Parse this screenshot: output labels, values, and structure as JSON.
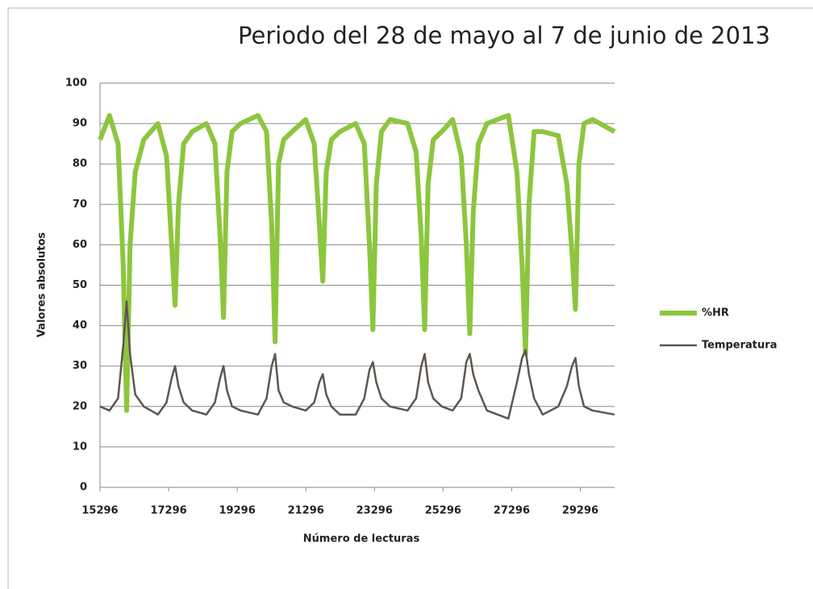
{
  "chart_data": {
    "type": "line",
    "title": "Periodo del 28 de mayo al 7 de junio de 2013",
    "xlabel": "Número de lecturas",
    "ylabel": "Valores absolutos",
    "x": [
      15296,
      15572,
      15822,
      15972,
      16072,
      16172,
      16322,
      16572,
      16984,
      17234,
      17384,
      17484,
      17584,
      17734,
      17984,
      18396,
      18646,
      18796,
      18896,
      18996,
      19146,
      19396,
      19900,
      20150,
      20300,
      20400,
      20500,
      20650,
      20900,
      21290,
      21540,
      21690,
      21790,
      21890,
      22040,
      22290,
      22750,
      23000,
      23150,
      23250,
      23350,
      23500,
      23750,
      24260,
      24510,
      24660,
      24760,
      24860,
      25010,
      25260,
      25575,
      25825,
      25975,
      26075,
      26175,
      26325,
      26575,
      27200,
      27450,
      27600,
      27700,
      27800,
      27950,
      28200,
      28655,
      28905,
      29055,
      29155,
      29255,
      29405,
      29655,
      30296
    ],
    "series": [
      {
        "name": "%HR",
        "color": "#8cc63e",
        "values": [
          86,
          92,
          85,
          55,
          19,
          60,
          78,
          86,
          90,
          82,
          60,
          45,
          70,
          85,
          88,
          90,
          85,
          62,
          42,
          78,
          88,
          90,
          92,
          88,
          65,
          36,
          80,
          86,
          88,
          91,
          85,
          65,
          51,
          78,
          86,
          88,
          90,
          85,
          60,
          39,
          75,
          88,
          91,
          90,
          83,
          62,
          39,
          75,
          86,
          88,
          91,
          82,
          60,
          38,
          68,
          85,
          90,
          92,
          78,
          55,
          33,
          70,
          88,
          88,
          87,
          75,
          58,
          44,
          80,
          90,
          91,
          88
        ]
      },
      {
        "name": "Temperatura",
        "color": "#5e564f",
        "values": [
          20,
          19,
          22,
          35,
          46,
          33,
          23,
          20,
          18,
          21,
          27,
          30,
          25,
          21,
          19,
          18,
          21,
          27,
          30,
          24,
          20,
          19,
          18,
          22,
          30,
          33,
          24,
          21,
          20,
          19,
          21,
          26,
          28,
          23,
          20,
          18,
          18,
          22,
          29,
          31,
          26,
          22,
          20,
          19,
          22,
          30,
          33,
          26,
          22,
          20,
          19,
          22,
          31,
          33,
          28,
          24,
          19,
          17,
          26,
          32,
          34,
          28,
          22,
          18,
          20,
          25,
          30,
          32,
          25,
          20,
          19,
          18
        ]
      }
    ],
    "xlim": [
      15296,
      30296
    ],
    "xticks": [
      15296,
      17296,
      19296,
      21296,
      23296,
      25296,
      27296,
      29296
    ],
    "ylim": [
      0,
      100
    ],
    "yticks": [
      0,
      10,
      20,
      30,
      40,
      50,
      60,
      70,
      80,
      90,
      100
    ],
    "grid": true,
    "legend": "right"
  }
}
